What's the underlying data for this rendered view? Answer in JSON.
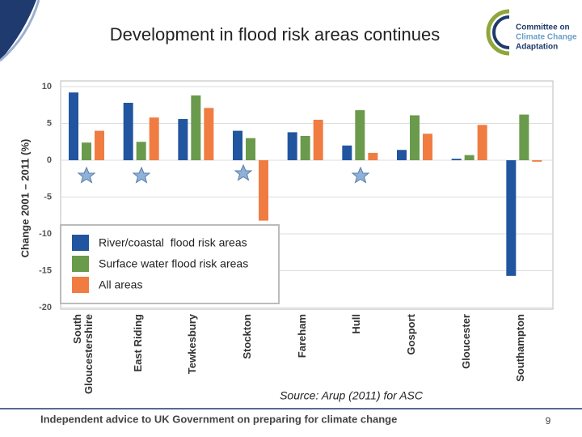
{
  "header": {
    "title": "Development in flood risk areas continues"
  },
  "logo": {
    "lines": [
      "Committee on",
      "Climate Change",
      "Adaptation"
    ]
  },
  "chart_data": {
    "type": "bar",
    "y_label": "Change 2001 – 2011 (%)",
    "categories": [
      "South Gloucestershire",
      "East Riding",
      "Tewkesbury",
      "Stockton",
      "Fareham",
      "Hull",
      "Gosport",
      "Gloucester",
      "Southampton"
    ],
    "series": [
      {
        "name": "River/coastal  flood risk areas",
        "color": "#22559f",
        "values": [
          9.2,
          7.8,
          5.6,
          4.0,
          3.8,
          2.0,
          1.4,
          0.2,
          -15.7
        ]
      },
      {
        "name": "Surface water flood risk areas",
        "color": "#6a9a4c",
        "values": [
          2.4,
          2.5,
          8.8,
          3.0,
          3.3,
          6.8,
          6.1,
          0.7,
          6.2
        ]
      },
      {
        "name": "All areas",
        "color": "#f07c42",
        "values": [
          4.0,
          5.8,
          7.1,
          -8.2,
          5.5,
          1.0,
          3.6,
          4.8,
          -0.2
        ]
      }
    ],
    "ylim": [
      -20,
      10
    ],
    "yticks": [
      -20,
      -15,
      -10,
      -5,
      0,
      5,
      10
    ],
    "grid": true,
    "legend_position": "lower left"
  },
  "source": "Source: Arup (2011) for ASC",
  "footer": {
    "text": "Independent advice to UK Government on preparing for climate change",
    "page": 9
  }
}
